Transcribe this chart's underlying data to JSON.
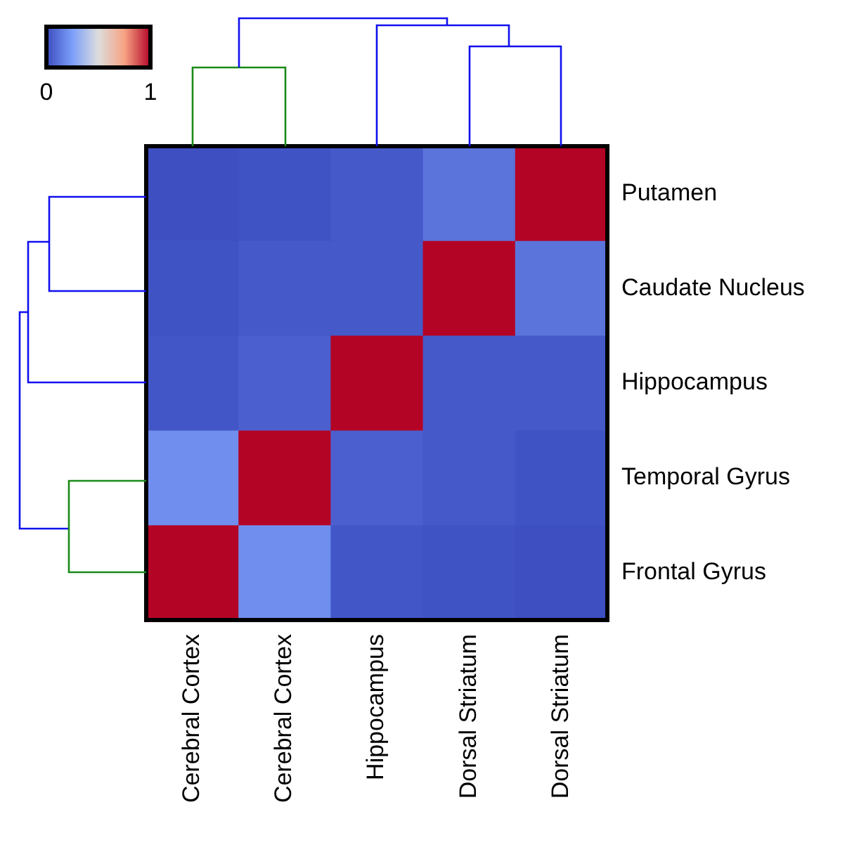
{
  "chart_data": {
    "type": "heatmap",
    "categories": [
      "Cerebral Cortex",
      "Cerebral Cortex",
      "Hippocampus",
      "Dorsal Striatum",
      "Dorsal Striatum"
    ],
    "y_categories": [
      "Putamen",
      "Caudate Nucleus",
      "Hippocampus",
      "Temporal Gyrus",
      "Frontal Gyrus"
    ],
    "cells": [
      [
        0.01,
        0.02,
        0.04,
        0.12,
        1
      ],
      [
        0.02,
        0.04,
        0.04,
        1,
        0.12
      ],
      [
        0.03,
        0.06,
        1,
        0.04,
        0.04
      ],
      [
        0.2,
        1,
        0.06,
        0.04,
        0.02
      ],
      [
        1,
        0.2,
        0.03,
        0.02,
        0.01
      ]
    ],
    "clim": [
      0,
      1
    ],
    "cticks": [
      0,
      1
    ]
  }
}
